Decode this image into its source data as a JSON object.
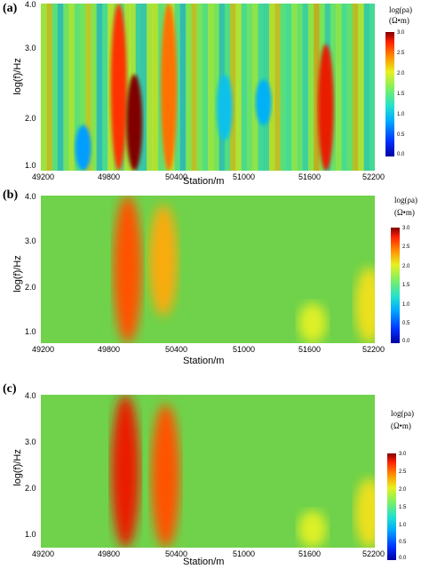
{
  "chart_data": [
    {
      "type": "heatmap",
      "panel_label": "(a)",
      "xlabel": "Station/m",
      "ylabel": "log(f)/Hz",
      "x_ticks": [
        "49200",
        "49800",
        "50400",
        "51000",
        "51600",
        "52200"
      ],
      "y_ticks": [
        "4.0",
        "3.0",
        "2.0",
        "1.0"
      ],
      "xlim": [
        49200,
        52200
      ],
      "ylim": [
        0.7,
        4.0
      ],
      "colorbar": {
        "title": "log(ρa)",
        "unit": "(Ω•m)",
        "ticks": [
          "0.0",
          "0.5",
          "1.0",
          "1.5",
          "2.0",
          "2.5",
          "3.0"
        ],
        "range": [
          0.0,
          3.0
        ]
      },
      "anomalies": [
        {
          "x": 49900,
          "y_min": 0.7,
          "y_max": 4.0,
          "value": 2.7
        },
        {
          "x": 50040,
          "y_min": 0.7,
          "y_max": 2.6,
          "value": 3.0
        },
        {
          "x": 50350,
          "y_min": 0.7,
          "y_max": 4.0,
          "value": 2.5
        },
        {
          "x": 51760,
          "y_min": 0.7,
          "y_max": 3.2,
          "value": 2.8
        },
        {
          "x": 50850,
          "y_min": 1.3,
          "y_max": 2.6,
          "value": 1.0
        },
        {
          "x": 51200,
          "y_min": 1.6,
          "y_max": 2.5,
          "value": 0.9
        },
        {
          "x": 49580,
          "y_min": 0.7,
          "y_max": 1.6,
          "value": 0.8
        }
      ]
    },
    {
      "type": "heatmap",
      "panel_label": "(b)",
      "xlabel": "Station/m",
      "ylabel": "log(f)/Hz",
      "x_ticks": [
        "49200",
        "49800",
        "50400",
        "51000",
        "51600",
        "52200"
      ],
      "y_ticks": [
        "4.0",
        "3.0",
        "2.0",
        "1.0"
      ],
      "xlim": [
        49200,
        52200
      ],
      "ylim": [
        0.7,
        4.0
      ],
      "colorbar": {
        "title": "log(ρa)",
        "unit": "(Ω•m)",
        "ticks": [
          "0.0",
          "0.5",
          "1.0",
          "1.5",
          "2.0",
          "2.5",
          "3.0"
        ],
        "range": [
          0.0,
          3.0
        ]
      },
      "anomalies": [
        {
          "x": 49980,
          "y_min": 0.7,
          "y_max": 4.0,
          "value": 2.6
        },
        {
          "x": 50300,
          "y_min": 1.3,
          "y_max": 3.8,
          "value": 2.3
        },
        {
          "x": 51640,
          "y_min": 0.7,
          "y_max": 1.6,
          "value": 2.0
        },
        {
          "x": 52150,
          "y_min": 0.7,
          "y_max": 2.4,
          "value": 2.1
        }
      ]
    },
    {
      "type": "heatmap",
      "panel_label": "(c)",
      "xlabel": "Station/m",
      "ylabel": "log(f)/Hz",
      "x_ticks": [
        "49200",
        "49800",
        "50400",
        "51000",
        "51600",
        "52200"
      ],
      "y_ticks": [
        "4.0",
        "3.0",
        "2.0",
        "1.0"
      ],
      "xlim": [
        49200,
        52200
      ],
      "ylim": [
        0.7,
        4.0
      ],
      "colorbar": {
        "title": "log(ρa)",
        "unit": "(Ω•m)",
        "ticks": [
          "0.0",
          "0.5",
          "1.0",
          "1.5",
          "2.0",
          "2.5",
          "3.0"
        ],
        "range": [
          0.0,
          3.0
        ]
      },
      "anomalies": [
        {
          "x": 49960,
          "y_min": 0.7,
          "y_max": 4.0,
          "value": 2.8
        },
        {
          "x": 50320,
          "y_min": 0.7,
          "y_max": 3.8,
          "value": 2.6
        },
        {
          "x": 51640,
          "y_min": 0.7,
          "y_max": 1.5,
          "value": 2.0
        },
        {
          "x": 52150,
          "y_min": 0.7,
          "y_max": 2.2,
          "value": 2.1
        }
      ]
    }
  ]
}
